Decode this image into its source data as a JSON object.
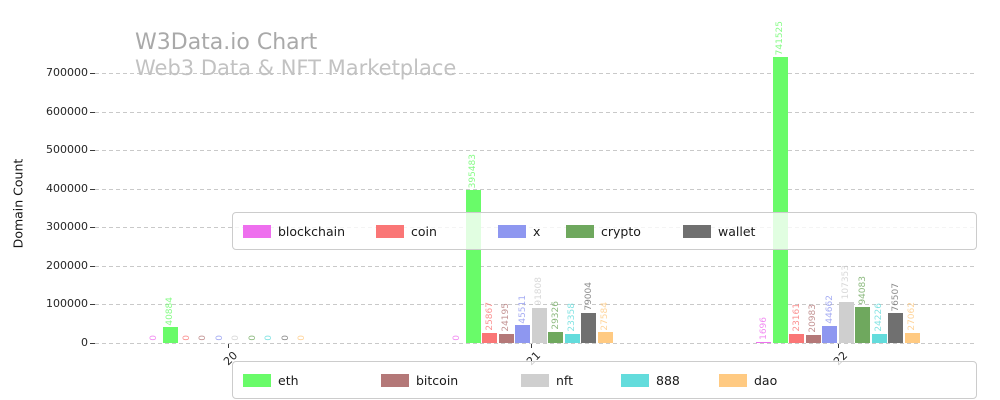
{
  "watermark": {
    "line1": "W3Data.io Chart",
    "line2": "Web3 Data & NFT Marketplace"
  },
  "chart_data": {
    "type": "bar",
    "title": "W3Data.io Chart",
    "subtitle": "Web3 Data & NFT Marketplace",
    "xlabel": "",
    "ylabel": "Domain Count",
    "ylim": [
      0,
      760000
    ],
    "grid": "dashed-horizontal",
    "yticks": [
      0,
      100000,
      200000,
      300000,
      400000,
      500000,
      600000,
      700000
    ],
    "categories": [
      "20",
      "21",
      "22"
    ],
    "series": [
      {
        "name": "blockchain",
        "color": "#ee6fee",
        "values": [
          0,
          0,
          1696
        ]
      },
      {
        "name": "eth",
        "color": "#69fb69",
        "values": [
          40884,
          395483,
          741525
        ]
      },
      {
        "name": "coin",
        "color": "#fa7676",
        "values": [
          0,
          25867,
          23161
        ]
      },
      {
        "name": "bitcoin",
        "color": "#b47878",
        "values": [
          0,
          24195,
          20983
        ]
      },
      {
        "name": "x",
        "color": "#8e97f0",
        "values": [
          0,
          45511,
          44662
        ]
      },
      {
        "name": "nft",
        "color": "#cfcfcf",
        "values": [
          0,
          91808,
          107353
        ]
      },
      {
        "name": "crypto",
        "color": "#6fa85e",
        "values": [
          0,
          29326,
          94083
        ]
      },
      {
        "name": "888",
        "color": "#63dcdc",
        "values": [
          0,
          23358,
          24226
        ]
      },
      {
        "name": "wallet",
        "color": "#707070",
        "values": [
          0,
          79004,
          76507
        ]
      },
      {
        "name": "dao",
        "color": "#ffca82",
        "values": [
          0,
          27584,
          27062
        ]
      }
    ],
    "legend_rows": [
      [
        "blockchain",
        "coin",
        "x",
        "crypto",
        "wallet"
      ],
      [
        "eth",
        "bitcoin",
        "nft",
        "888",
        "dao"
      ]
    ]
  }
}
